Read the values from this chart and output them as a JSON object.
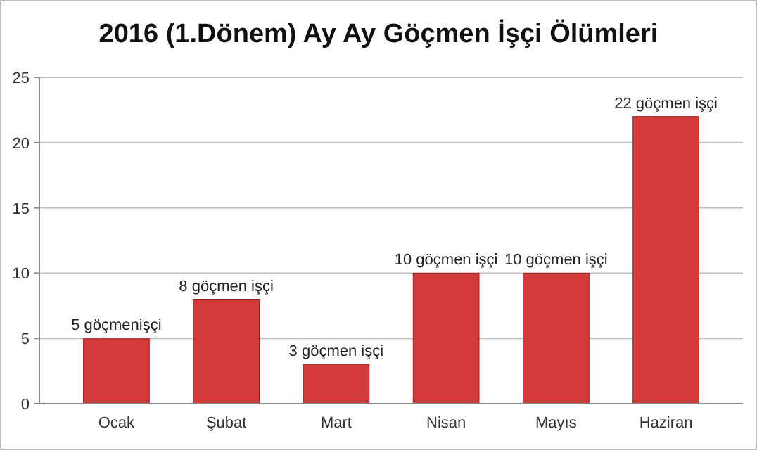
{
  "chart_data": {
    "type": "bar",
    "title": "2016 (1.Dönem) Ay Ay Göçmen İşçi Ölümleri",
    "categories": [
      "Ocak",
      "Şubat",
      "Mart",
      "Nisan",
      "Mayıs",
      "Haziran"
    ],
    "values": [
      5,
      8,
      3,
      10,
      10,
      22
    ],
    "value_labels": [
      "5 göçmenişçi",
      "8 göçmen işçi",
      "3 göçmen işçi",
      "10 göçmen işçi",
      "10 göçmen işçi",
      "22 göçmen işçi"
    ],
    "color": "#d33a3a",
    "ylim": [
      0,
      25
    ],
    "yticks": [
      0,
      5,
      10,
      15,
      20,
      25
    ],
    "grid": "y"
  }
}
